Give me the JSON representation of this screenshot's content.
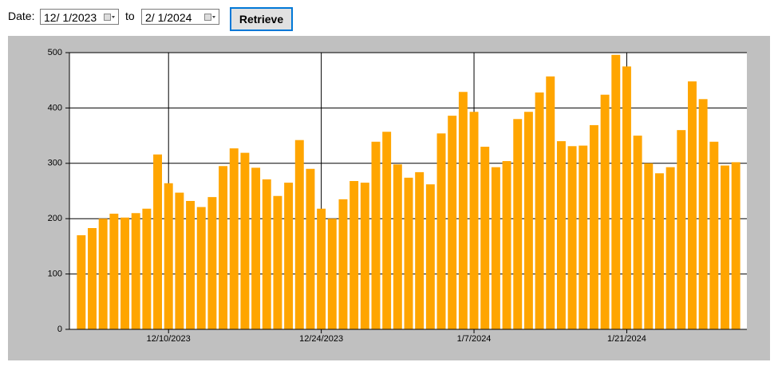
{
  "controls": {
    "date_label": "Date:",
    "from_date": "12/  1/2023",
    "to_label": "to",
    "to_date": "2/  1/2024",
    "button": "Retrieve"
  },
  "chart_data": {
    "type": "bar",
    "color": "#ffa500",
    "grid": true,
    "categories": [
      null,
      null,
      null,
      null,
      null,
      null,
      null,
      null,
      "12/10/2023",
      null,
      null,
      null,
      null,
      null,
      null,
      null,
      null,
      null,
      null,
      null,
      null,
      null,
      "12/24/2023",
      null,
      null,
      null,
      null,
      null,
      null,
      null,
      null,
      null,
      null,
      null,
      null,
      null,
      "1/7/2024",
      null,
      null,
      null,
      null,
      null,
      null,
      null,
      null,
      null,
      null,
      null,
      null,
      null,
      "1/21/2024",
      null,
      null,
      null,
      null,
      null,
      null,
      null,
      null,
      null,
      null
    ],
    "values": [
      170,
      183,
      200,
      209,
      202,
      210,
      218,
      316,
      264,
      247,
      232,
      221,
      239,
      295,
      327,
      319,
      292,
      271,
      241,
      265,
      342,
      290,
      218,
      200,
      235,
      268,
      265,
      339,
      357,
      298,
      274,
      284,
      262,
      354,
      386,
      429,
      393,
      330,
      293,
      304,
      380,
      393,
      428,
      457,
      340,
      331,
      332,
      369,
      424,
      496,
      475,
      350,
      300,
      282,
      293,
      360,
      448,
      416,
      339,
      296,
      302
    ],
    "ylim": [
      0,
      500
    ],
    "yticks": [
      0,
      100,
      200,
      300,
      400,
      500
    ]
  }
}
